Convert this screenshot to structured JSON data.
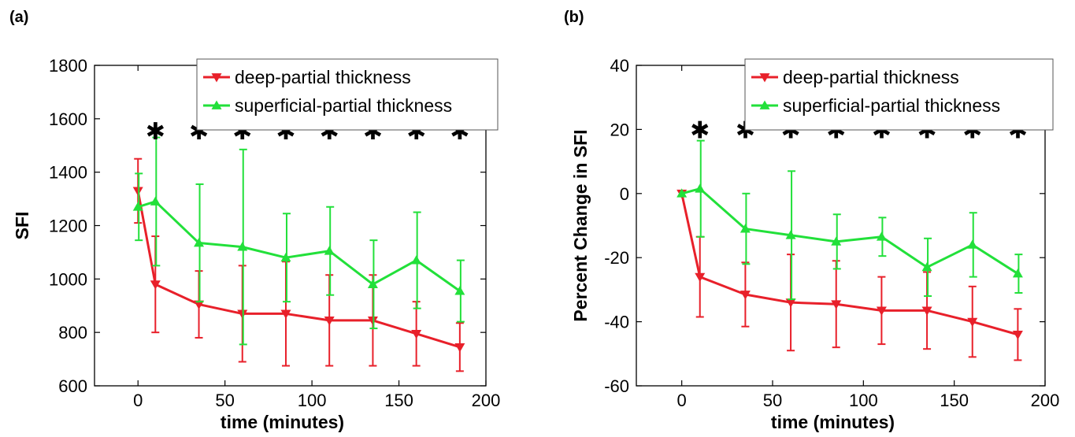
{
  "chart_data": [
    {
      "type": "line",
      "panel_label": "(a)",
      "xlabel": "time (minutes)",
      "ylabel": "SFI",
      "xlim": [
        -25,
        200
      ],
      "ylim": [
        600,
        1800
      ],
      "xticks": [
        0,
        50,
        100,
        150,
        200
      ],
      "yticks": [
        600,
        800,
        1000,
        1200,
        1400,
        1600,
        1800
      ],
      "grid": false,
      "legend_position": "top-right",
      "significance_marker": "✱",
      "significance_x": [
        10,
        35,
        60,
        85,
        110,
        135,
        160,
        185
      ],
      "significance_y": 1555,
      "series": [
        {
          "name": "deep-partial thickness",
          "color": "#e8202a",
          "marker": "triangle-down",
          "x": [
            0,
            10,
            35,
            60,
            85,
            110,
            135,
            160,
            185
          ],
          "y": [
            1330,
            980,
            905,
            870,
            870,
            845,
            845,
            795,
            745
          ],
          "err": [
            120,
            180,
            125,
            180,
            195,
            170,
            170,
            120,
            90
          ]
        },
        {
          "name": "superficial-partial thickness",
          "color": "#22e03a",
          "marker": "triangle-up",
          "x": [
            0,
            10,
            35,
            60,
            85,
            110,
            135,
            160,
            185
          ],
          "y": [
            1270,
            1290,
            1135,
            1120,
            1080,
            1105,
            980,
            1070,
            955
          ],
          "err": [
            125,
            240,
            220,
            365,
            165,
            165,
            165,
            180,
            115
          ]
        }
      ]
    },
    {
      "type": "line",
      "panel_label": "(b)",
      "xlabel": "time (minutes)",
      "ylabel": "Percent Change in SFI",
      "xlim": [
        -25,
        200
      ],
      "ylim": [
        -60,
        40
      ],
      "xticks": [
        0,
        50,
        100,
        150,
        200
      ],
      "yticks": [
        -60,
        -40,
        -20,
        0,
        20,
        40
      ],
      "grid": false,
      "legend_position": "top-right",
      "significance_marker": "✱",
      "significance_x": [
        10,
        35,
        60,
        85,
        110,
        135,
        160,
        185
      ],
      "significance_y": 20,
      "series": [
        {
          "name": "deep-partial thickness",
          "color": "#e8202a",
          "marker": "triangle-down",
          "x": [
            0,
            10,
            35,
            60,
            85,
            110,
            135,
            160,
            185
          ],
          "y": [
            0,
            -26,
            -31.5,
            -34,
            -34.5,
            -36.5,
            -36.5,
            -40,
            -44
          ],
          "err": [
            0,
            12.5,
            10,
            15,
            13.5,
            10.5,
            12,
            11,
            8
          ]
        },
        {
          "name": "superficial-partial thickness",
          "color": "#22e03a",
          "marker": "triangle-up",
          "x": [
            0,
            10,
            35,
            60,
            85,
            110,
            135,
            160,
            185
          ],
          "y": [
            0,
            1.5,
            -11,
            -13,
            -15,
            -13.5,
            -23,
            -16,
            -25
          ],
          "err": [
            0,
            15,
            11,
            20,
            8.5,
            6,
            9,
            10,
            6
          ]
        }
      ]
    }
  ]
}
